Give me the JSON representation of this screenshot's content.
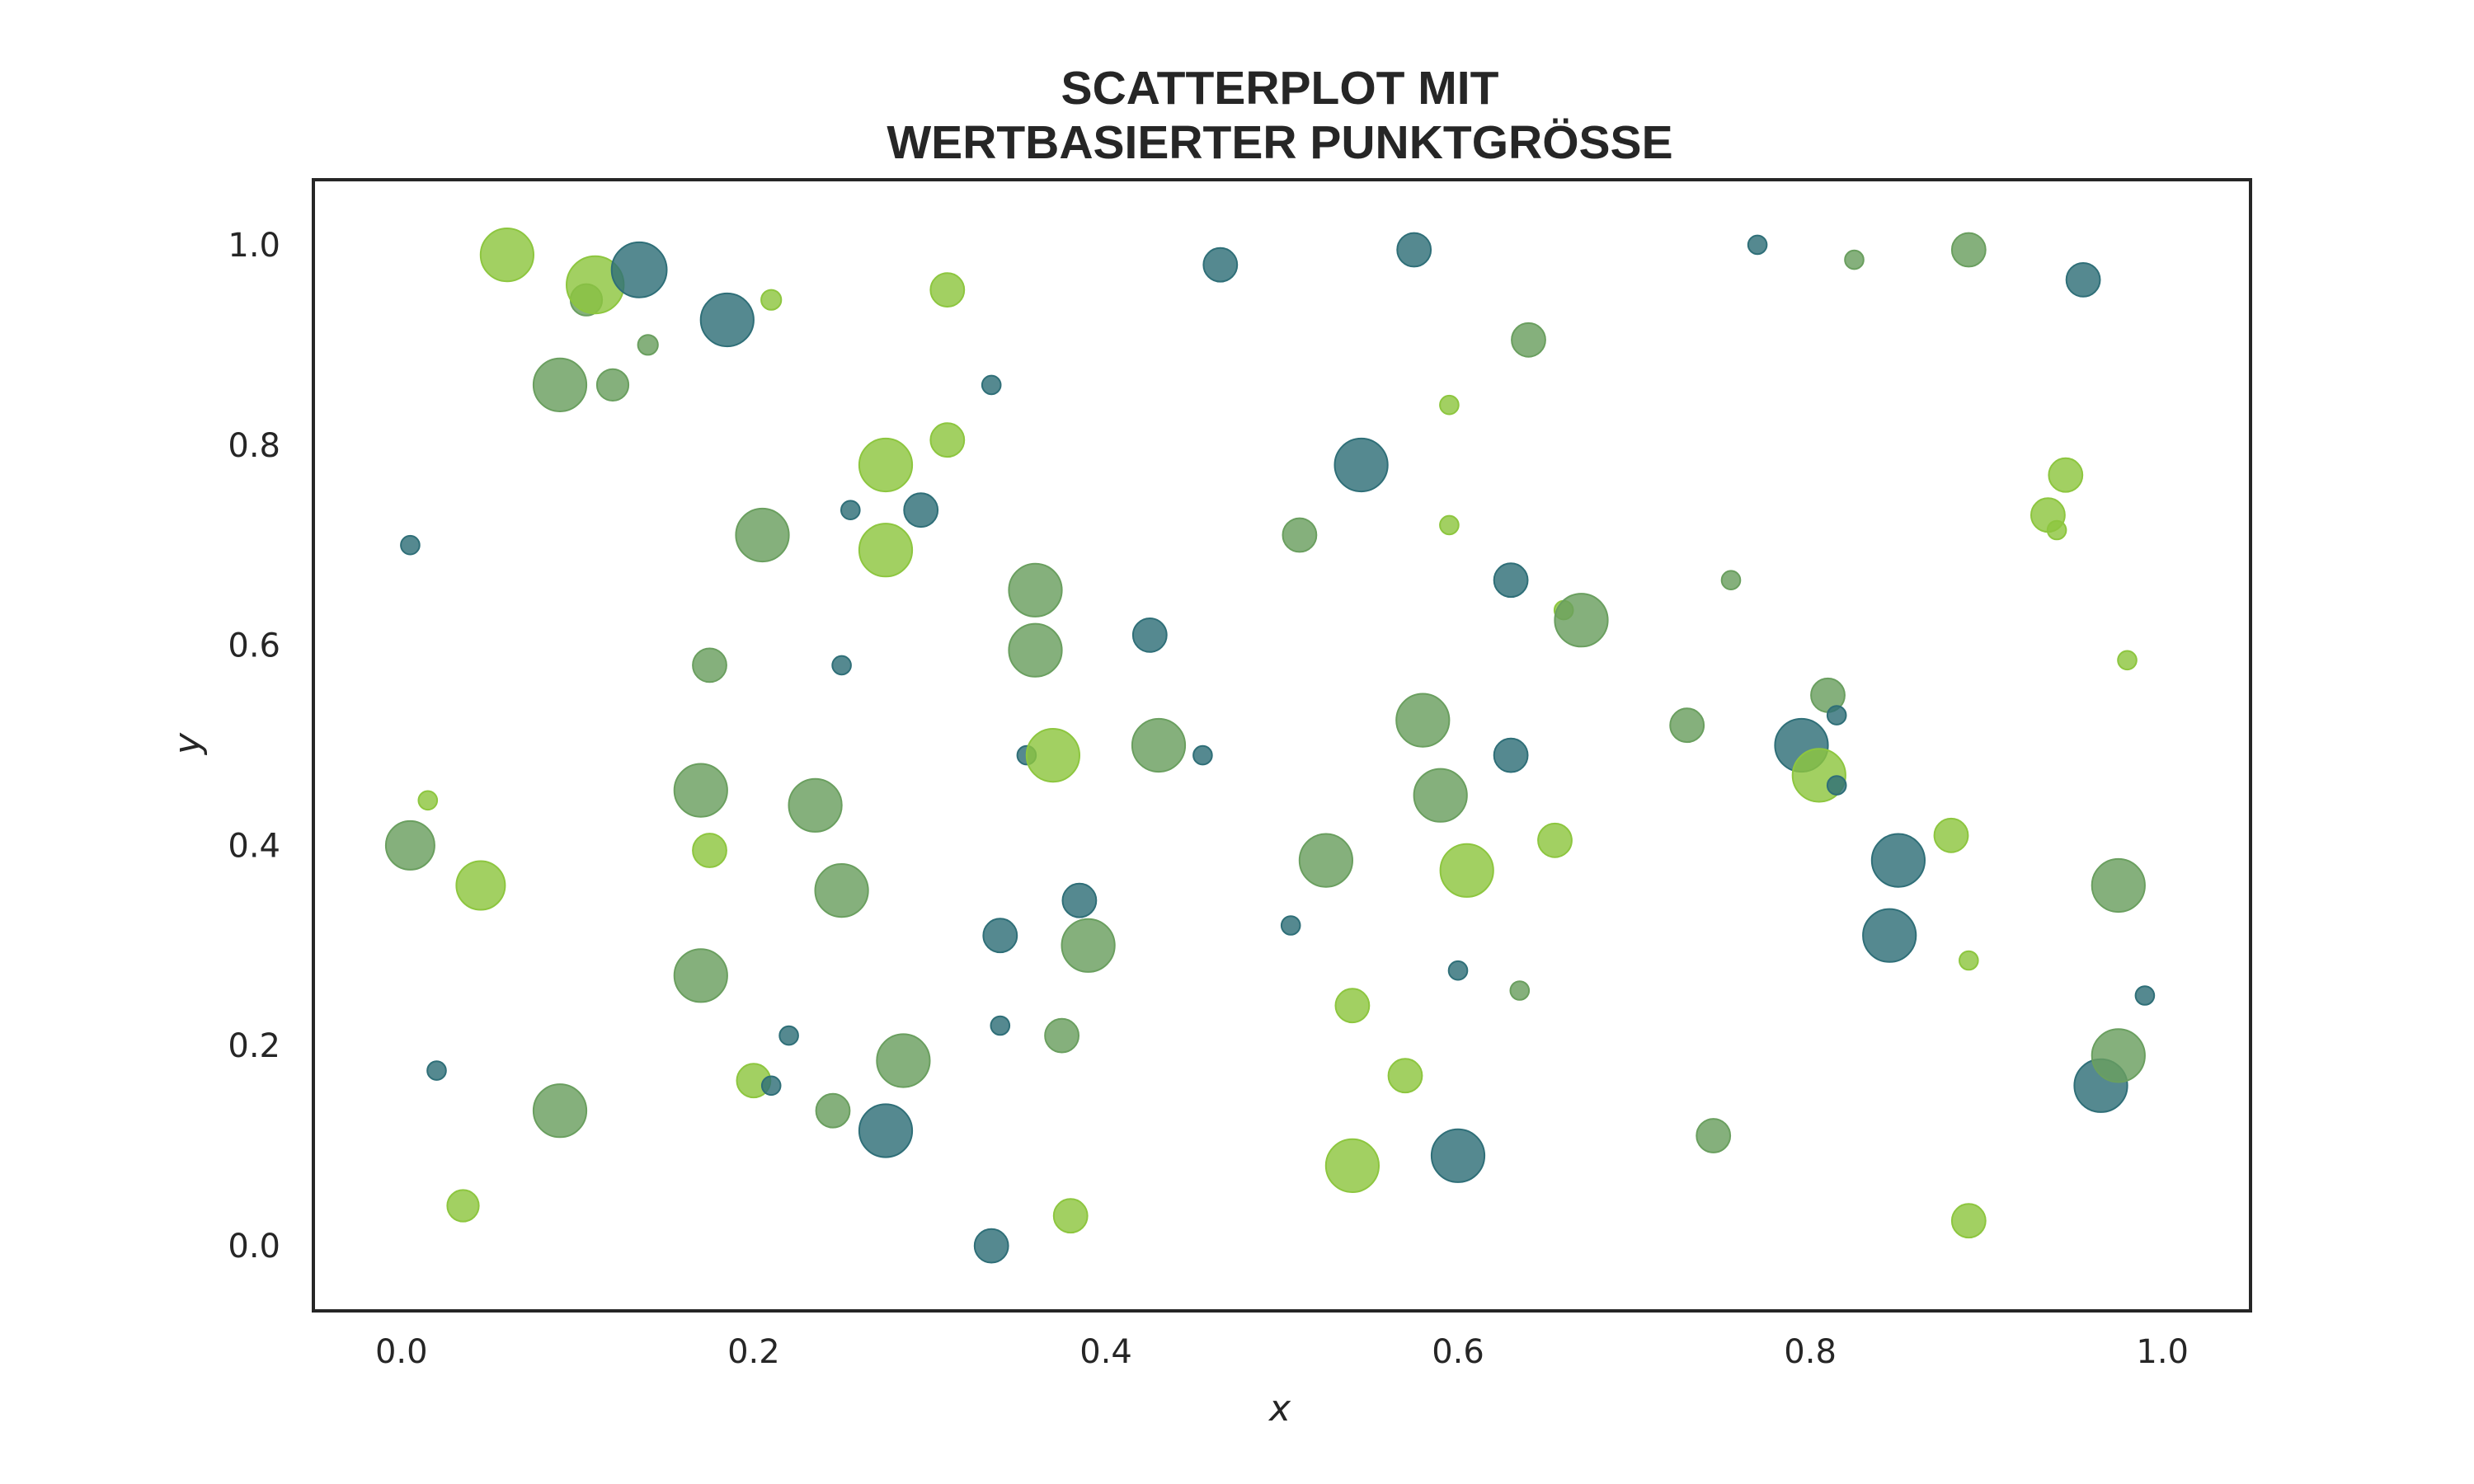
{
  "chart_data": {
    "type": "scatter",
    "title_lines": [
      "SCATTERPLOT MIT",
      "WERTBASIERTER PUNKTGRÖSSE"
    ],
    "xlabel": "x",
    "ylabel": "y",
    "xlim": [
      -0.05,
      1.05
    ],
    "ylim": [
      -0.065,
      1.065
    ],
    "xticks": [
      "0.0",
      "0.2",
      "0.4",
      "0.6",
      "0.8",
      "1.0"
    ],
    "yticks": [
      "0.0",
      "0.2",
      "0.4",
      "0.6",
      "0.8",
      "1.0"
    ],
    "grid": false,
    "point_colors": {
      "teal": "#2f6f78",
      "green": "#6a9f5f",
      "lime": "#8dc63f"
    },
    "points": [
      {
        "x": 0.005,
        "y": 0.7,
        "s": 0.05,
        "c": "teal"
      },
      {
        "x": 0.005,
        "y": 0.4,
        "s": 0.75,
        "c": "green"
      },
      {
        "x": 0.015,
        "y": 0.445,
        "s": 0.05,
        "c": "lime"
      },
      {
        "x": 0.02,
        "y": 0.175,
        "s": 0.05,
        "c": "teal"
      },
      {
        "x": 0.035,
        "y": 0.04,
        "s": 0.35,
        "c": "lime"
      },
      {
        "x": 0.045,
        "y": 0.36,
        "s": 0.75,
        "c": "lime"
      },
      {
        "x": 0.06,
        "y": 0.99,
        "s": 0.85,
        "c": "lime"
      },
      {
        "x": 0.09,
        "y": 0.86,
        "s": 0.85,
        "c": "green"
      },
      {
        "x": 0.09,
        "y": 0.135,
        "s": 0.85,
        "c": "green"
      },
      {
        "x": 0.105,
        "y": 0.945,
        "s": 0.35,
        "c": "green"
      },
      {
        "x": 0.11,
        "y": 0.96,
        "s": 0.95,
        "c": "lime"
      },
      {
        "x": 0.12,
        "y": 0.86,
        "s": 0.35,
        "c": "green"
      },
      {
        "x": 0.135,
        "y": 0.975,
        "s": 0.9,
        "c": "teal"
      },
      {
        "x": 0.14,
        "y": 0.9,
        "s": 0.08,
        "c": "green"
      },
      {
        "x": 0.17,
        "y": 0.455,
        "s": 0.85,
        "c": "green"
      },
      {
        "x": 0.17,
        "y": 0.27,
        "s": 0.85,
        "c": "green"
      },
      {
        "x": 0.175,
        "y": 0.58,
        "s": 0.4,
        "c": "green"
      },
      {
        "x": 0.175,
        "y": 0.395,
        "s": 0.4,
        "c": "lime"
      },
      {
        "x": 0.185,
        "y": 0.925,
        "s": 0.85,
        "c": "teal"
      },
      {
        "x": 0.2,
        "y": 0.165,
        "s": 0.4,
        "c": "lime"
      },
      {
        "x": 0.205,
        "y": 0.71,
        "s": 0.85,
        "c": "green"
      },
      {
        "x": 0.21,
        "y": 0.16,
        "s": 0.05,
        "c": "teal"
      },
      {
        "x": 0.21,
        "y": 0.945,
        "s": 0.08,
        "c": "lime"
      },
      {
        "x": 0.22,
        "y": 0.21,
        "s": 0.05,
        "c": "teal"
      },
      {
        "x": 0.235,
        "y": 0.44,
        "s": 0.85,
        "c": "green"
      },
      {
        "x": 0.245,
        "y": 0.135,
        "s": 0.4,
        "c": "green"
      },
      {
        "x": 0.25,
        "y": 0.58,
        "s": 0.05,
        "c": "teal"
      },
      {
        "x": 0.25,
        "y": 0.355,
        "s": 0.85,
        "c": "green"
      },
      {
        "x": 0.255,
        "y": 0.735,
        "s": 0.05,
        "c": "teal"
      },
      {
        "x": 0.275,
        "y": 0.695,
        "s": 0.85,
        "c": "lime"
      },
      {
        "x": 0.275,
        "y": 0.78,
        "s": 0.85,
        "c": "lime"
      },
      {
        "x": 0.275,
        "y": 0.115,
        "s": 0.85,
        "c": "teal"
      },
      {
        "x": 0.285,
        "y": 0.185,
        "s": 0.85,
        "c": "green"
      },
      {
        "x": 0.295,
        "y": 0.735,
        "s": 0.4,
        "c": "teal"
      },
      {
        "x": 0.31,
        "y": 0.955,
        "s": 0.4,
        "c": "lime"
      },
      {
        "x": 0.31,
        "y": 0.805,
        "s": 0.4,
        "c": "lime"
      },
      {
        "x": 0.335,
        "y": 0.86,
        "s": 0.05,
        "c": "teal"
      },
      {
        "x": 0.335,
        "y": 0.0,
        "s": 0.4,
        "c": "teal"
      },
      {
        "x": 0.34,
        "y": 0.31,
        "s": 0.4,
        "c": "teal"
      },
      {
        "x": 0.34,
        "y": 0.22,
        "s": 0.05,
        "c": "teal"
      },
      {
        "x": 0.355,
        "y": 0.49,
        "s": 0.05,
        "c": "teal"
      },
      {
        "x": 0.36,
        "y": 0.595,
        "s": 0.85,
        "c": "green"
      },
      {
        "x": 0.36,
        "y": 0.655,
        "s": 0.85,
        "c": "green"
      },
      {
        "x": 0.37,
        "y": 0.49,
        "s": 0.85,
        "c": "lime"
      },
      {
        "x": 0.375,
        "y": 0.21,
        "s": 0.4,
        "c": "green"
      },
      {
        "x": 0.38,
        "y": 0.03,
        "s": 0.4,
        "c": "lime"
      },
      {
        "x": 0.385,
        "y": 0.345,
        "s": 0.4,
        "c": "teal"
      },
      {
        "x": 0.39,
        "y": 0.3,
        "s": 0.85,
        "c": "green"
      },
      {
        "x": 0.425,
        "y": 0.61,
        "s": 0.4,
        "c": "teal"
      },
      {
        "x": 0.43,
        "y": 0.5,
        "s": 0.85,
        "c": "green"
      },
      {
        "x": 0.455,
        "y": 0.49,
        "s": 0.05,
        "c": "teal"
      },
      {
        "x": 0.465,
        "y": 0.98,
        "s": 0.4,
        "c": "teal"
      },
      {
        "x": 0.505,
        "y": 0.32,
        "s": 0.05,
        "c": "teal"
      },
      {
        "x": 0.51,
        "y": 0.71,
        "s": 0.4,
        "c": "green"
      },
      {
        "x": 0.525,
        "y": 0.385,
        "s": 0.85,
        "c": "green"
      },
      {
        "x": 0.54,
        "y": 0.08,
        "s": 0.85,
        "c": "lime"
      },
      {
        "x": 0.54,
        "y": 0.24,
        "s": 0.4,
        "c": "lime"
      },
      {
        "x": 0.545,
        "y": 0.78,
        "s": 0.85,
        "c": "teal"
      },
      {
        "x": 0.57,
        "y": 0.17,
        "s": 0.4,
        "c": "lime"
      },
      {
        "x": 0.575,
        "y": 0.995,
        "s": 0.4,
        "c": "teal"
      },
      {
        "x": 0.58,
        "y": 0.525,
        "s": 0.85,
        "c": "green"
      },
      {
        "x": 0.59,
        "y": 0.45,
        "s": 0.85,
        "c": "green"
      },
      {
        "x": 0.595,
        "y": 0.84,
        "s": 0.05,
        "c": "lime"
      },
      {
        "x": 0.595,
        "y": 0.72,
        "s": 0.05,
        "c": "lime"
      },
      {
        "x": 0.6,
        "y": 0.09,
        "s": 0.85,
        "c": "teal"
      },
      {
        "x": 0.6,
        "y": 0.275,
        "s": 0.05,
        "c": "teal"
      },
      {
        "x": 0.605,
        "y": 0.375,
        "s": 0.85,
        "c": "lime"
      },
      {
        "x": 0.63,
        "y": 0.665,
        "s": 0.4,
        "c": "teal"
      },
      {
        "x": 0.63,
        "y": 0.49,
        "s": 0.4,
        "c": "teal"
      },
      {
        "x": 0.635,
        "y": 0.255,
        "s": 0.05,
        "c": "green"
      },
      {
        "x": 0.64,
        "y": 0.905,
        "s": 0.4,
        "c": "green"
      },
      {
        "x": 0.655,
        "y": 0.405,
        "s": 0.4,
        "c": "lime"
      },
      {
        "x": 0.66,
        "y": 0.635,
        "s": 0.05,
        "c": "lime"
      },
      {
        "x": 0.67,
        "y": 0.625,
        "s": 0.85,
        "c": "green"
      },
      {
        "x": 0.73,
        "y": 0.52,
        "s": 0.4,
        "c": "green"
      },
      {
        "x": 0.745,
        "y": 0.11,
        "s": 0.4,
        "c": "green"
      },
      {
        "x": 0.755,
        "y": 0.665,
        "s": 0.05,
        "c": "green"
      },
      {
        "x": 0.77,
        "y": 1.0,
        "s": 0.05,
        "c": "teal"
      },
      {
        "x": 0.795,
        "y": 0.5,
        "s": 0.85,
        "c": "teal"
      },
      {
        "x": 0.805,
        "y": 0.47,
        "s": 0.85,
        "c": "lime"
      },
      {
        "x": 0.81,
        "y": 0.55,
        "s": 0.4,
        "c": "green"
      },
      {
        "x": 0.815,
        "y": 0.53,
        "s": 0.05,
        "c": "teal"
      },
      {
        "x": 0.815,
        "y": 0.46,
        "s": 0.05,
        "c": "teal"
      },
      {
        "x": 0.825,
        "y": 0.985,
        "s": 0.05,
        "c": "green"
      },
      {
        "x": 0.845,
        "y": 0.31,
        "s": 0.85,
        "c": "teal"
      },
      {
        "x": 0.85,
        "y": 0.385,
        "s": 0.85,
        "c": "teal"
      },
      {
        "x": 0.88,
        "y": 0.41,
        "s": 0.4,
        "c": "lime"
      },
      {
        "x": 0.89,
        "y": 0.995,
        "s": 0.4,
        "c": "green"
      },
      {
        "x": 0.89,
        "y": 0.285,
        "s": 0.05,
        "c": "lime"
      },
      {
        "x": 0.89,
        "y": 0.025,
        "s": 0.4,
        "c": "lime"
      },
      {
        "x": 0.935,
        "y": 0.73,
        "s": 0.4,
        "c": "lime"
      },
      {
        "x": 0.94,
        "y": 0.715,
        "s": 0.05,
        "c": "lime"
      },
      {
        "x": 0.945,
        "y": 0.77,
        "s": 0.4,
        "c": "lime"
      },
      {
        "x": 0.955,
        "y": 0.965,
        "s": 0.4,
        "c": "teal"
      },
      {
        "x": 0.965,
        "y": 0.16,
        "s": 0.85,
        "c": "teal"
      },
      {
        "x": 0.975,
        "y": 0.19,
        "s": 0.85,
        "c": "green"
      },
      {
        "x": 0.975,
        "y": 0.36,
        "s": 0.85,
        "c": "green"
      },
      {
        "x": 0.98,
        "y": 0.585,
        "s": 0.05,
        "c": "lime"
      },
      {
        "x": 0.99,
        "y": 0.25,
        "s": 0.05,
        "c": "teal"
      }
    ]
  }
}
